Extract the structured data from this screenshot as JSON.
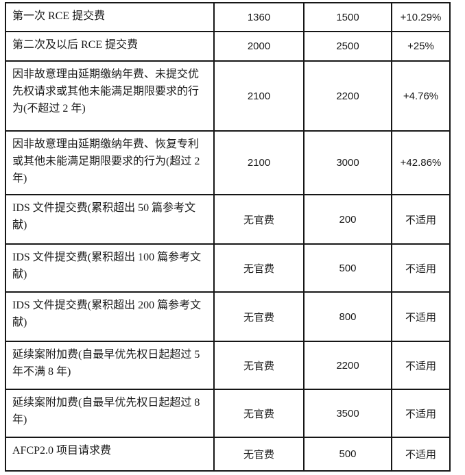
{
  "page": {
    "background_color": "#ffffff",
    "border_color": "#161616",
    "text_color": "#1a1a1a"
  },
  "table": {
    "description": "fee-schedule-table-continuation",
    "column_semantics": [
      "fee_item",
      "current_fee",
      "new_fee",
      "change_percent"
    ],
    "rows": [
      {
        "item": "第一次 RCE 提交费",
        "current": "1360",
        "new": "1500",
        "change": "+10.29%"
      },
      {
        "item": "第二次及以后 RCE 提交费",
        "current": "2000",
        "new": "2500",
        "change": "+25%"
      },
      {
        "item": "因非故意理由延期缴纳年费、未提交优先权请求或其他未能满足期限要求的行为(不超过 2 年)",
        "current": "2100",
        "new": "2200",
        "change": "+4.76%"
      },
      {
        "item": "因非故意理由延期缴纳年费、恢复专利或其他未能满足期限要求的行为(超过 2 年)",
        "current": "2100",
        "new": "3000",
        "change": "+42.86%"
      },
      {
        "item": "IDS 文件提交费(累积超出 50 篇参考文献)",
        "current": "无官费",
        "new": "200",
        "change": "不适用"
      },
      {
        "item": "IDS 文件提交费(累积超出 100 篇参考文献)",
        "current": "无官费",
        "new": "500",
        "change": "不适用"
      },
      {
        "item": "IDS 文件提交费(累积超出 200 篇参考文献)",
        "current": "无官费",
        "new": "800",
        "change": "不适用"
      },
      {
        "item": "延续案附加费(自最早优先权日起超过 5 年不满 8 年)",
        "current": "无官费",
        "new": "2200",
        "change": "不适用"
      },
      {
        "item": "延续案附加费(自最早优先权日起超过 8 年)",
        "current": "无官费",
        "new": "3500",
        "change": "不适用"
      },
      {
        "item": "AFCP2.0 项目请求费",
        "current": "无官费",
        "new": "500",
        "change": "不适用"
      }
    ]
  }
}
